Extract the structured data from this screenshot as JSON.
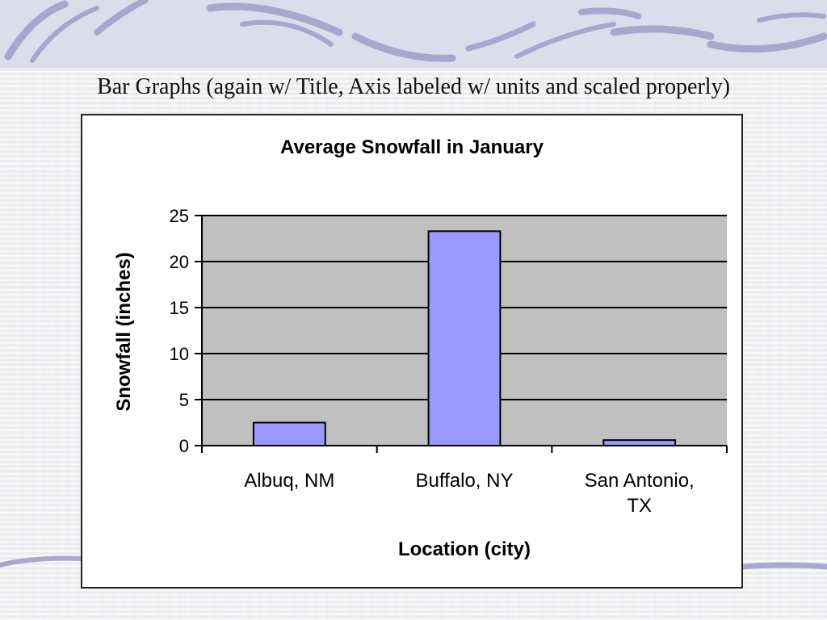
{
  "slide": {
    "heading": "Bar Graphs (again w/ Title, Axis labeled w/ units and scaled properly)"
  },
  "colors": {
    "bar_fill": "#9999ff",
    "plot_background": "#c0c0c0",
    "decor_swoosh": "#a9a9cf"
  },
  "chart_data": {
    "type": "bar",
    "title": "Average Snowfall in January",
    "xlabel": "Location (city)",
    "ylabel": "Snowfall (inches)",
    "categories": [
      "Albuq, NM",
      "Buffalo, NY",
      "San Antonio, TX"
    ],
    "category_lines": [
      [
        "Albuq, NM"
      ],
      [
        "Buffalo, NY"
      ],
      [
        "San Antonio,",
        "TX"
      ]
    ],
    "values": [
      2.5,
      23.3,
      0.6
    ],
    "ylim": [
      0,
      25
    ],
    "yticks": [
      0,
      5,
      10,
      15,
      20,
      25
    ],
    "grid": true,
    "legend": "none"
  }
}
